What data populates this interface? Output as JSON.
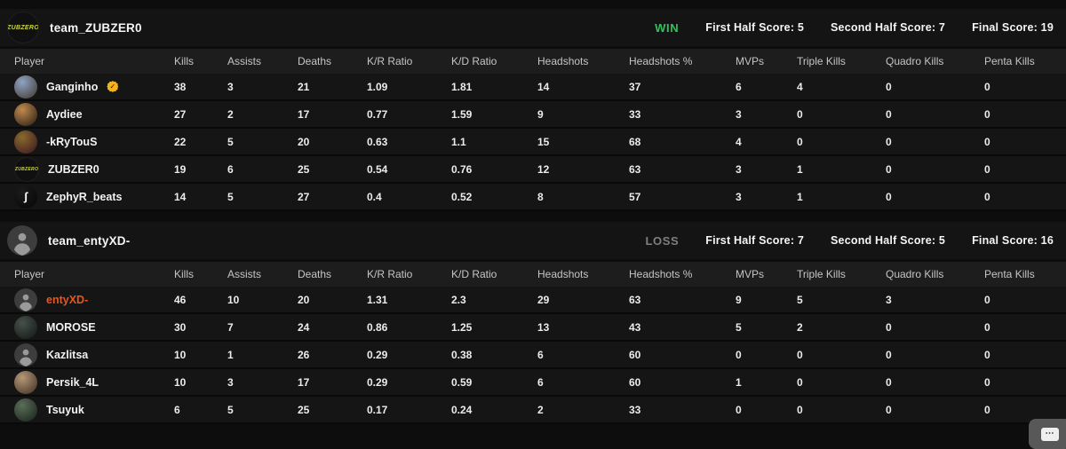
{
  "columns": [
    "Player",
    "Kills",
    "Assists",
    "Deaths",
    "K/R Ratio",
    "K/D Ratio",
    "Headshots",
    "Headshots %",
    "MVPs",
    "Triple Kills",
    "Quadro Kills",
    "Penta Kills"
  ],
  "colors": {
    "win": "#2fc45a",
    "loss": "#7f7f7f",
    "accent_orange": "#e7561f",
    "badge_gold": "#f2b31b"
  },
  "widget": {
    "icon": "embed-keyboard-dots"
  },
  "teams": [
    {
      "name": "team_ZUBZER0",
      "result": "WIN",
      "result_color": "#2fc45a",
      "first_half": "First Half Score: 5",
      "second_half": "Second Half Score: 7",
      "final": "Final Score: 19",
      "avatar": {
        "kind": "logo",
        "text": "ZUBZERO",
        "color": "#cdd93c"
      },
      "players": [
        {
          "name": "Ganginho",
          "verified": true,
          "avatar": {
            "kind": "art",
            "c1": "#8ea3c4",
            "c2": "#41362a"
          },
          "kills": "38",
          "assists": "3",
          "deaths": "21",
          "kr": "1.09",
          "kd": "1.81",
          "hs": "14",
          "hsp": "37",
          "mvps": "6",
          "triple": "4",
          "quadro": "0",
          "penta": "0"
        },
        {
          "name": "Aydiee",
          "avatar": {
            "kind": "art",
            "c1": "#c08a4e",
            "c2": "#241a12"
          },
          "kills": "27",
          "assists": "2",
          "deaths": "17",
          "kr": "0.77",
          "kd": "1.59",
          "hs": "9",
          "hsp": "33",
          "mvps": "3",
          "triple": "0",
          "quadro": "0",
          "penta": "0"
        },
        {
          "name": "-kRyTouS",
          "avatar": {
            "kind": "art",
            "c1": "#8a6a2c",
            "c2": "#3a1420"
          },
          "kills": "22",
          "assists": "5",
          "deaths": "20",
          "kr": "0.63",
          "kd": "1.1",
          "hs": "15",
          "hsp": "68",
          "mvps": "4",
          "triple": "0",
          "quadro": "0",
          "penta": "0"
        },
        {
          "name": "ZUBZER0",
          "avatar": {
            "kind": "logo",
            "text": "ZUBZERO",
            "color": "#cdd93c"
          },
          "kills": "19",
          "assists": "6",
          "deaths": "25",
          "kr": "0.54",
          "kd": "0.76",
          "hs": "12",
          "hsp": "63",
          "mvps": "3",
          "triple": "1",
          "quadro": "0",
          "penta": "0"
        },
        {
          "name": "ZephyR_beats",
          "avatar": {
            "kind": "art",
            "c1": "#1c1c1c",
            "c2": "#050505",
            "glyph": "ʃ",
            "glyph_color": "#ffffff"
          },
          "kills": "14",
          "assists": "5",
          "deaths": "27",
          "kr": "0.4",
          "kd": "0.52",
          "hs": "8",
          "hsp": "57",
          "mvps": "3",
          "triple": "1",
          "quadro": "0",
          "penta": "0"
        }
      ]
    },
    {
      "name": "team_entyXD-",
      "result": "LOSS",
      "result_color": "#7f7f7f",
      "first_half": "First Half Score: 7",
      "second_half": "Second Half Score: 5",
      "final": "Final Score: 16",
      "avatar": {
        "kind": "default"
      },
      "players": [
        {
          "name": "entyXD-",
          "name_color": "#e7561f",
          "avatar": {
            "kind": "default"
          },
          "kills": "46",
          "assists": "10",
          "deaths": "20",
          "kr": "1.31",
          "kd": "2.3",
          "hs": "29",
          "hsp": "63",
          "mvps": "9",
          "triple": "5",
          "quadro": "3",
          "penta": "0"
        },
        {
          "name": "MOROSE",
          "avatar": {
            "kind": "art",
            "c1": "#46504a",
            "c2": "#121614"
          },
          "kills": "30",
          "assists": "7",
          "deaths": "24",
          "kr": "0.86",
          "kd": "1.25",
          "hs": "13",
          "hsp": "43",
          "mvps": "5",
          "triple": "2",
          "quadro": "0",
          "penta": "0"
        },
        {
          "name": "Kazlitsa",
          "avatar": {
            "kind": "default"
          },
          "kills": "10",
          "assists": "1",
          "deaths": "26",
          "kr": "0.29",
          "kd": "0.38",
          "hs": "6",
          "hsp": "60",
          "mvps": "0",
          "triple": "0",
          "quadro": "0",
          "penta": "0"
        },
        {
          "name": "Persik_4L",
          "avatar": {
            "kind": "art",
            "c1": "#b59878",
            "c2": "#3c2d20"
          },
          "kills": "10",
          "assists": "3",
          "deaths": "17",
          "kr": "0.29",
          "kd": "0.59",
          "hs": "6",
          "hsp": "60",
          "mvps": "1",
          "triple": "0",
          "quadro": "0",
          "penta": "0"
        },
        {
          "name": "Tsuyuk",
          "avatar": {
            "kind": "art",
            "c1": "#5a6e58",
            "c2": "#16201a"
          },
          "kills": "6",
          "assists": "5",
          "deaths": "25",
          "kr": "0.17",
          "kd": "0.24",
          "hs": "2",
          "hsp": "33",
          "mvps": "0",
          "triple": "0",
          "quadro": "0",
          "penta": "0"
        }
      ]
    }
  ]
}
